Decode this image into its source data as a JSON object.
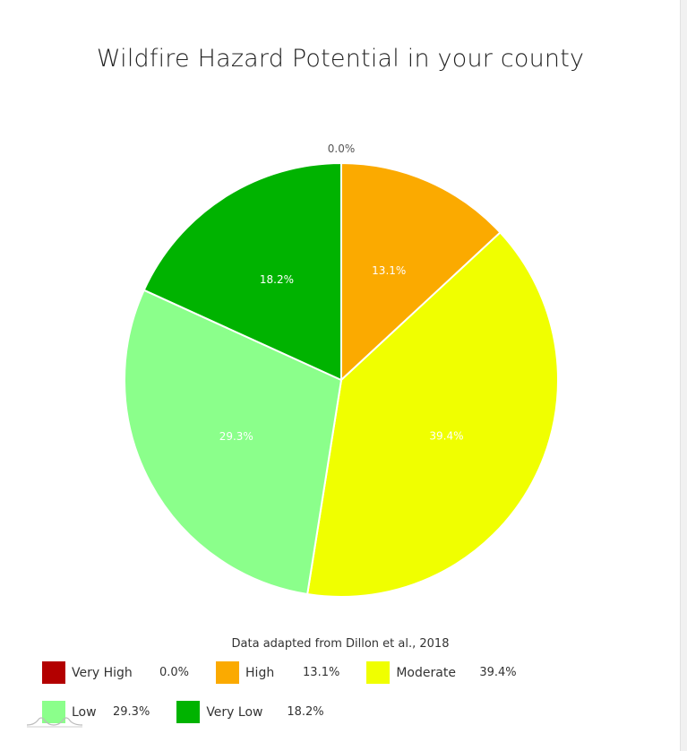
{
  "title": "Wildfire Hazard Potential in your county",
  "source": "Data adapted from Dillon et al., 2018",
  "chart_data": {
    "type": "pie",
    "start_angle_deg": 0,
    "direction": "clockwise",
    "slices": [
      {
        "name": "Very High",
        "value": 0.0,
        "label": "0.0%",
        "color": "#b30000",
        "label_color": "#555555"
      },
      {
        "name": "High",
        "value": 13.1,
        "label": "13.1%",
        "color": "#fbaa00",
        "label_color": "#ffffff"
      },
      {
        "name": "Moderate",
        "value": 39.4,
        "label": "39.4%",
        "color": "#f0ff00",
        "label_color": "#ffffff"
      },
      {
        "name": "Low",
        "value": 29.3,
        "label": "29.3%",
        "color": "#8bff8b",
        "label_color": "#ffffff"
      },
      {
        "name": "Very Low",
        "value": 18.2,
        "label": "18.2%",
        "color": "#00b300",
        "label_color": "#ffffff"
      }
    ],
    "legend_placement": "bottom"
  },
  "legend": [
    {
      "name": "Very High",
      "pct": "0.0%",
      "color": "#b30000"
    },
    {
      "name": "High",
      "pct": "13.1%",
      "color": "#fbaa00"
    },
    {
      "name": "Moderate",
      "pct": "39.4%",
      "color": "#f0ff00"
    },
    {
      "name": "Low",
      "pct": "29.3%",
      "color": "#8bff8b"
    },
    {
      "name": "Very Low",
      "pct": "18.2%",
      "color": "#00b300"
    }
  ]
}
